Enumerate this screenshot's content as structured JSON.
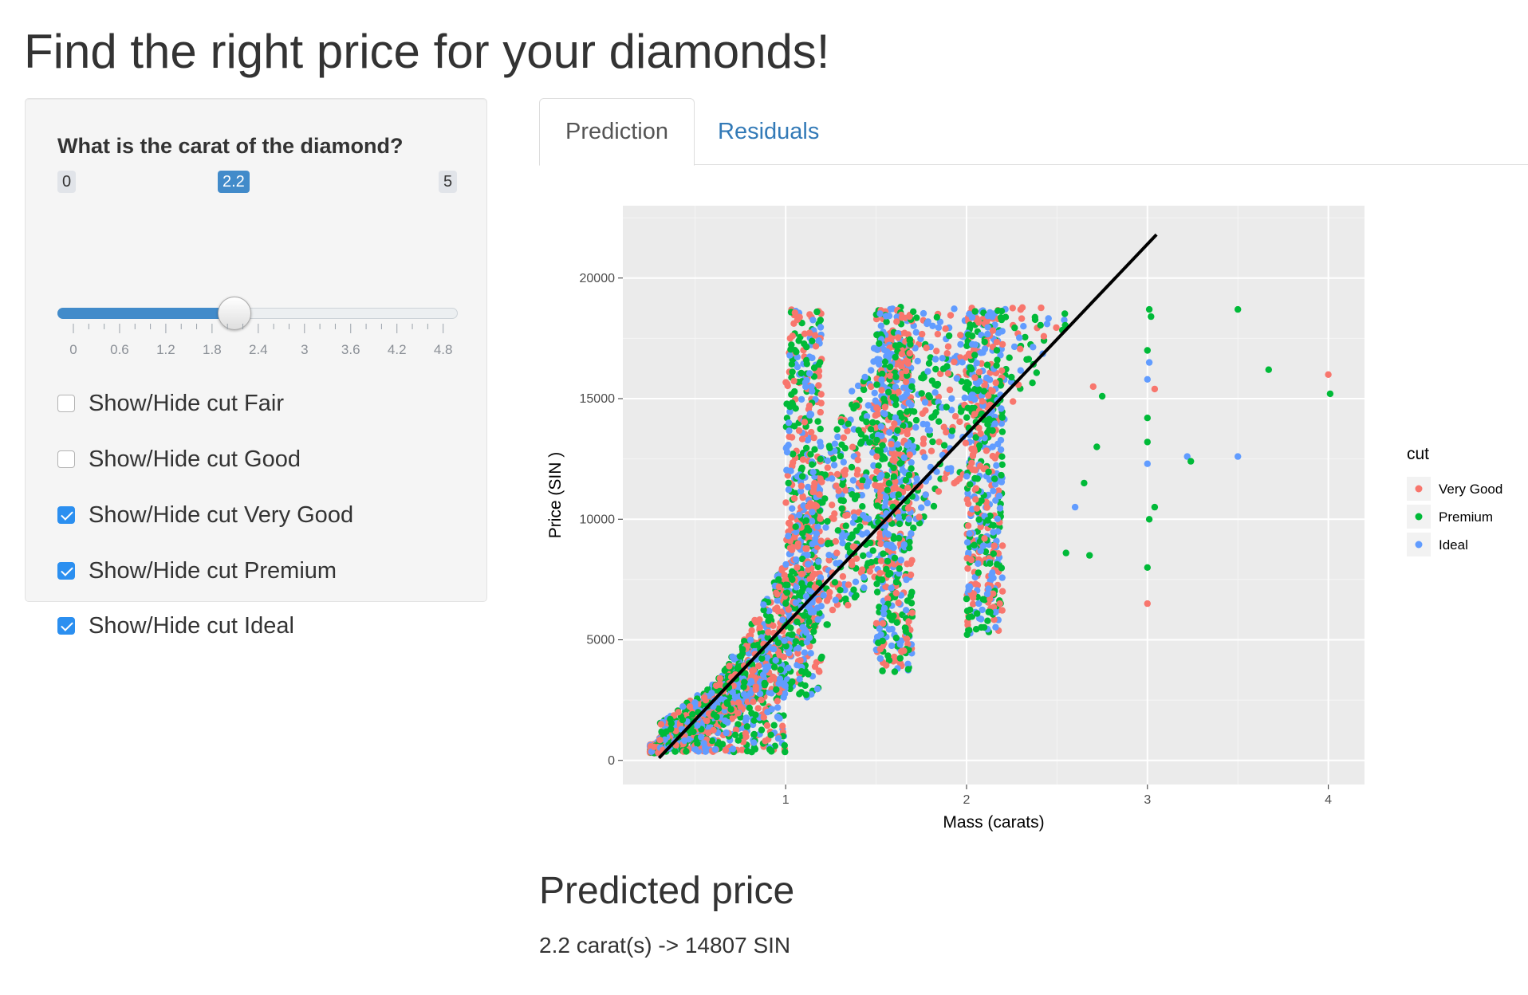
{
  "page": {
    "title": "Find the right price for your diamonds!"
  },
  "sidebar": {
    "slider": {
      "label": "What is the carat of the diamond?",
      "min": "0",
      "max": "5",
      "value": "2.2",
      "grid_labels": [
        "0",
        "0.6",
        "1.2",
        "1.8",
        "2.4",
        "3",
        "3.6",
        "4.2",
        "4.8"
      ],
      "colors": {
        "bar": "#428bca",
        "badge": "#428bca"
      }
    },
    "checkboxes": [
      {
        "label": "Show/Hide cut Fair",
        "checked": false
      },
      {
        "label": "Show/Hide cut Good",
        "checked": false
      },
      {
        "label": "Show/Hide cut Very Good",
        "checked": true
      },
      {
        "label": "Show/Hide cut Premium",
        "checked": true
      },
      {
        "label": "Show/Hide cut Ideal",
        "checked": true
      }
    ]
  },
  "tabs": [
    {
      "label": "Prediction",
      "active": true
    },
    {
      "label": "Residuals",
      "active": false
    }
  ],
  "chart_data": {
    "type": "scatter",
    "xlabel": "Mass (carats)",
    "ylabel": "Price (SIN )",
    "xlim": [
      0.1,
      4.2
    ],
    "ylim": [
      -1000,
      23000
    ],
    "x_ticks": [
      "1",
      "2",
      "3",
      "4"
    ],
    "x_tick_values": [
      1,
      2,
      3,
      4
    ],
    "y_ticks": [
      "0",
      "5000",
      "10000",
      "15000",
      "20000"
    ],
    "y_tick_values": [
      0,
      5000,
      10000,
      15000,
      20000
    ],
    "grid": true,
    "legend": {
      "title": "cut",
      "placement": "right",
      "entries": [
        {
          "name": "Very Good",
          "color": "#f8766d"
        },
        {
          "name": "Premium",
          "color": "#00ba38"
        },
        {
          "name": "Ideal",
          "color": "#619cff"
        }
      ]
    },
    "fit_line": {
      "color": "#000000",
      "x": [
        0.3,
        3.05
      ],
      "y": [
        100,
        21800
      ]
    },
    "outliers": [
      {
        "x": 3.01,
        "y": 18700,
        "series": "Premium"
      },
      {
        "x": 3.02,
        "y": 18400,
        "series": "Premium"
      },
      {
        "x": 3.0,
        "y": 17000,
        "series": "Premium"
      },
      {
        "x": 3.01,
        "y": 16500,
        "series": "Ideal"
      },
      {
        "x": 3.0,
        "y": 15800,
        "series": "Ideal"
      },
      {
        "x": 3.04,
        "y": 15400,
        "series": "Very Good"
      },
      {
        "x": 3.0,
        "y": 14200,
        "series": "Premium"
      },
      {
        "x": 3.0,
        "y": 13200,
        "series": "Premium"
      },
      {
        "x": 3.0,
        "y": 12300,
        "series": "Ideal"
      },
      {
        "x": 3.04,
        "y": 10500,
        "series": "Premium"
      },
      {
        "x": 3.01,
        "y": 10000,
        "series": "Premium"
      },
      {
        "x": 3.0,
        "y": 8000,
        "series": "Premium"
      },
      {
        "x": 3.0,
        "y": 6500,
        "series": "Very Good"
      },
      {
        "x": 3.22,
        "y": 12600,
        "series": "Ideal"
      },
      {
        "x": 3.24,
        "y": 12400,
        "series": "Premium"
      },
      {
        "x": 3.5,
        "y": 18700,
        "series": "Premium"
      },
      {
        "x": 3.5,
        "y": 12600,
        "series": "Ideal"
      },
      {
        "x": 3.67,
        "y": 16200,
        "series": "Premium"
      },
      {
        "x": 4.0,
        "y": 16000,
        "series": "Very Good"
      },
      {
        "x": 4.01,
        "y": 15200,
        "series": "Premium"
      },
      {
        "x": 2.75,
        "y": 15100,
        "series": "Premium"
      },
      {
        "x": 2.7,
        "y": 15500,
        "series": "Very Good"
      },
      {
        "x": 2.72,
        "y": 13000,
        "series": "Premium"
      },
      {
        "x": 2.65,
        "y": 11500,
        "series": "Premium"
      },
      {
        "x": 2.68,
        "y": 8500,
        "series": "Premium"
      },
      {
        "x": 2.55,
        "y": 8600,
        "series": "Premium"
      },
      {
        "x": 2.6,
        "y": 10500,
        "series": "Ideal"
      }
    ]
  },
  "prediction": {
    "title": "Predicted price",
    "text": "2.2 carat(s) -> 14807 SIN"
  }
}
